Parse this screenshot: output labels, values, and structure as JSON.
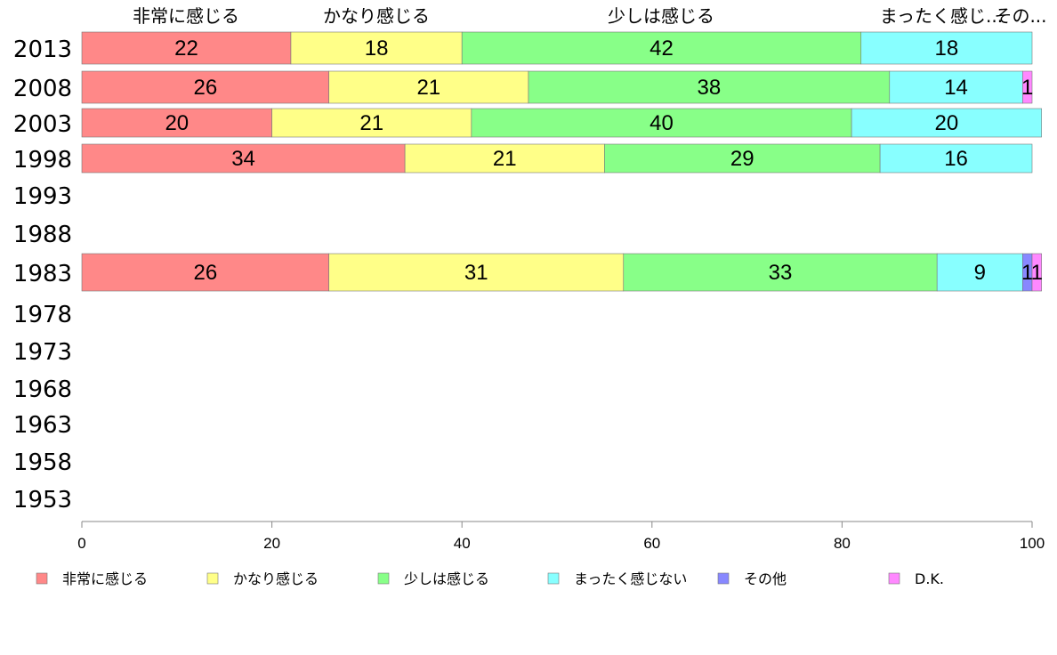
{
  "chart_data": {
    "type": "bar",
    "orientation": "horizontal",
    "stacked": true,
    "xlim": [
      0,
      100
    ],
    "x_ticks": [
      "0",
      "20",
      "40",
      "60",
      "80",
      "100"
    ],
    "categories": [
      "2013",
      "2008",
      "2003",
      "1998",
      "1993",
      "1988",
      "1983",
      "1978",
      "1973",
      "1968",
      "1963",
      "1958",
      "1953"
    ],
    "top_labels": [
      "非常に感じる",
      "かなり感じる",
      "少しは感じる",
      "まったく感じ...",
      "その..."
    ],
    "series": [
      {
        "name": "非常に感じる",
        "color": "#ff8888",
        "values": [
          22,
          26,
          20,
          34,
          null,
          null,
          26,
          null,
          null,
          null,
          null,
          null,
          null
        ],
        "labels": [
          "22",
          "26",
          "20",
          "34",
          "",
          "",
          "26",
          "",
          "",
          "",
          "",
          "",
          ""
        ]
      },
      {
        "name": "かなり感じる",
        "color": "#ffff88",
        "values": [
          18,
          21,
          21,
          21,
          null,
          null,
          31,
          null,
          null,
          null,
          null,
          null,
          null
        ],
        "labels": [
          "18",
          "21",
          "21",
          "21",
          "",
          "",
          "31",
          "",
          "",
          "",
          "",
          "",
          ""
        ]
      },
      {
        "name": "少しは感じる",
        "color": "#88ff88",
        "values": [
          42,
          38,
          40,
          29,
          null,
          null,
          33,
          null,
          null,
          null,
          null,
          null,
          null
        ],
        "labels": [
          "42",
          "38",
          "40",
          "29",
          "",
          "",
          "33",
          "",
          "",
          "",
          "",
          "",
          ""
        ]
      },
      {
        "name": "まったく感じない",
        "color": "#88ffff",
        "values": [
          18,
          14,
          20,
          16,
          null,
          null,
          9,
          null,
          null,
          null,
          null,
          null,
          null
        ],
        "labels": [
          "18",
          "14",
          "20",
          "16",
          "",
          "",
          "9",
          "",
          "",
          "",
          "",
          "",
          ""
        ]
      },
      {
        "name": "その他",
        "color": "#8888ff",
        "values": [
          0,
          0,
          0,
          0,
          null,
          null,
          1,
          null,
          null,
          null,
          null,
          null,
          null
        ],
        "labels": [
          "",
          "",
          "",
          "",
          "",
          "",
          "1",
          "",
          "",
          "",
          "",
          "",
          ""
        ]
      },
      {
        "name": "D.K.",
        "color": "#ff88ff",
        "values": [
          0,
          1,
          0,
          0,
          null,
          null,
          1,
          null,
          null,
          null,
          null,
          null,
          null
        ],
        "labels": [
          "",
          "1",
          "",
          "",
          "",
          "",
          "1",
          "",
          "",
          "",
          "",
          "",
          ""
        ]
      }
    ],
    "legend_position": "bottom"
  }
}
